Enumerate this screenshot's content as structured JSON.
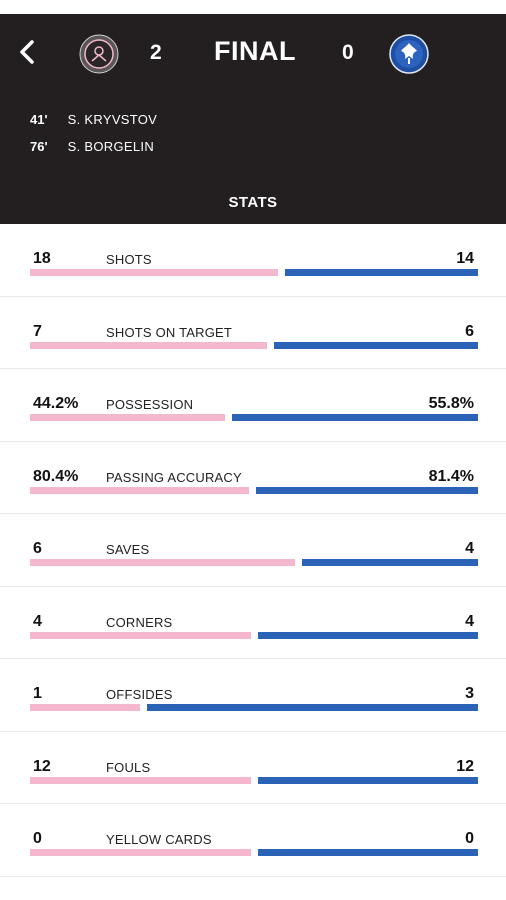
{
  "match": {
    "status": "FINAL",
    "home_score": "2",
    "away_score": "0",
    "home_team_logo": "inter-miami-crest",
    "away_team_logo": "cf-montreal-crest",
    "goals": [
      {
        "minute": "41'",
        "scorer": "S. KRYVSTOV"
      },
      {
        "minute": "76'",
        "scorer": "S. BORGELIN"
      }
    ]
  },
  "section_title": "STATS",
  "colors": {
    "header_bg": "#231f20",
    "home_bar": "#f4b7cd",
    "away_bar": "#2b63b6"
  },
  "stats": [
    {
      "label": "SHOTS",
      "home": "18",
      "away": "14",
      "home_share": 0.5625
    },
    {
      "label": "SHOTS ON TARGET",
      "home": "7",
      "away": "6",
      "home_share": 0.5385
    },
    {
      "label": "POSSESSION",
      "home": "44.2%",
      "away": "55.8%",
      "home_share": 0.442
    },
    {
      "label": "PASSING ACCURACY",
      "home": "80.4%",
      "away": "81.4%",
      "home_share": 0.497
    },
    {
      "label": "SAVES",
      "home": "6",
      "away": "4",
      "home_share": 0.6
    },
    {
      "label": "CORNERS",
      "home": "4",
      "away": "4",
      "home_share": 0.5
    },
    {
      "label": "OFFSIDES",
      "home": "1",
      "away": "3",
      "home_share": 0.25
    },
    {
      "label": "FOULS",
      "home": "12",
      "away": "12",
      "home_share": 0.5
    },
    {
      "label": "YELLOW CARDS",
      "home": "0",
      "away": "0",
      "home_share": 0.5
    }
  ]
}
